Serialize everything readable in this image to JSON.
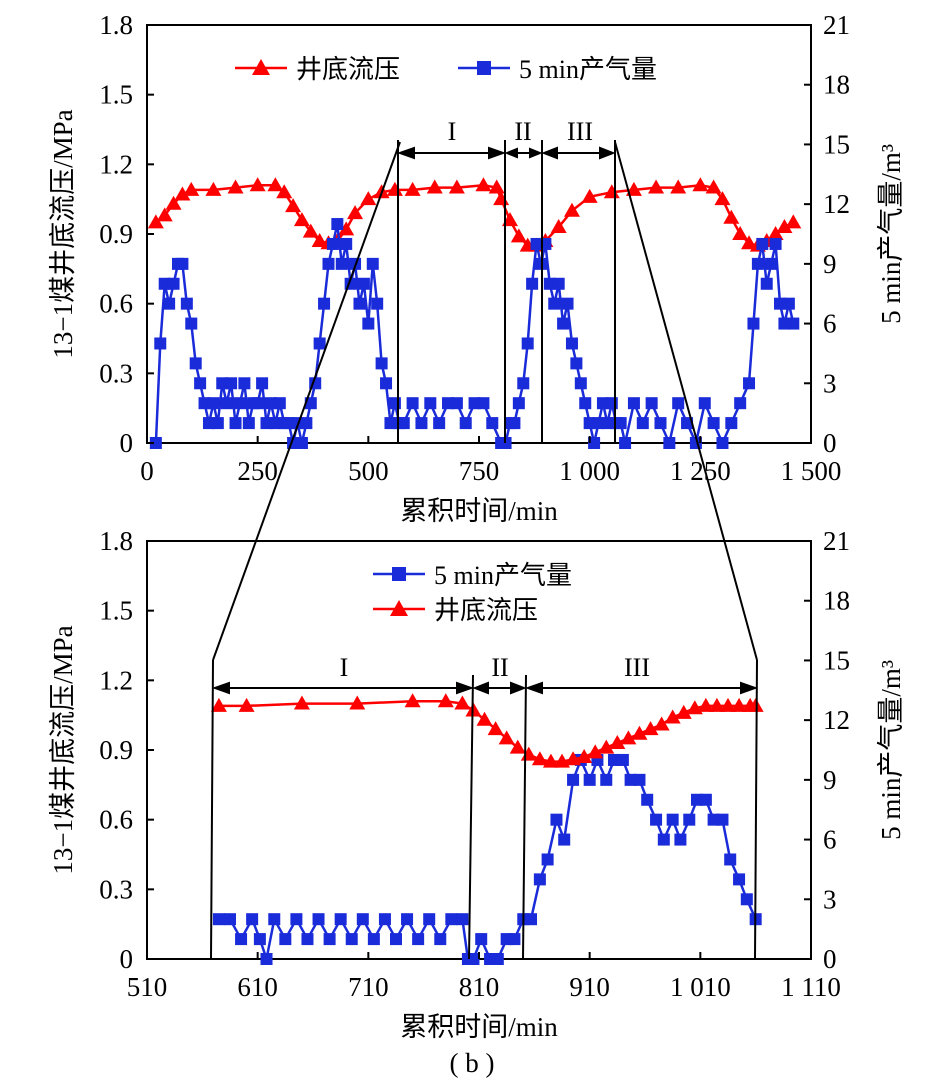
{
  "caption": "( b )",
  "colors": {
    "pressure": "#ff0000",
    "gas": "#1a2bd9",
    "axis": "#000000"
  },
  "chart_data": [
    {
      "type": "line",
      "x": {
        "label": "累积时间/min",
        "ticks": [
          "0",
          "250",
          "500",
          "750",
          "1 000",
          "1 250",
          "1 500"
        ],
        "range": [
          0,
          1500
        ]
      },
      "y_left": {
        "label": "13−1煤井底流压/MPa",
        "ticks": [
          "0",
          "0.3",
          "0.6",
          "0.9",
          "1.2",
          "1.5",
          "1.8"
        ],
        "range": [
          0,
          1.8
        ]
      },
      "y_right": {
        "label": "5 min产气量/m³",
        "ticks": [
          "0",
          "3",
          "6",
          "9",
          "12",
          "15",
          "18",
          "21"
        ],
        "range": [
          0,
          21
        ]
      },
      "legend": [
        "井底流压",
        "5 min产气量"
      ],
      "phase_labels": [
        "I",
        "II",
        "III"
      ],
      "series": [
        {
          "name": "井底流压",
          "axis": "left",
          "marker": "triangle",
          "x": [
            20,
            40,
            60,
            80,
            100,
            150,
            200,
            250,
            290,
            310,
            330,
            350,
            370,
            390,
            410,
            430,
            450,
            470,
            500,
            530,
            560,
            600,
            650,
            700,
            760,
            790,
            800,
            820,
            840,
            860,
            880,
            900,
            930,
            960,
            1000,
            1050,
            1100,
            1150,
            1200,
            1250,
            1280,
            1300,
            1320,
            1340,
            1360,
            1380,
            1400,
            1420,
            1440,
            1460
          ],
          "y": [
            0.95,
            0.98,
            1.03,
            1.07,
            1.09,
            1.09,
            1.1,
            1.11,
            1.11,
            1.08,
            1.02,
            0.96,
            0.91,
            0.87,
            0.86,
            0.87,
            0.92,
            0.99,
            1.05,
            1.08,
            1.09,
            1.09,
            1.1,
            1.1,
            1.11,
            1.1,
            1.05,
            0.96,
            0.89,
            0.85,
            0.85,
            0.87,
            0.93,
            1.0,
            1.06,
            1.08,
            1.09,
            1.1,
            1.1,
            1.11,
            1.1,
            1.05,
            0.97,
            0.9,
            0.86,
            0.85,
            0.87,
            0.9,
            0.93,
            0.95
          ]
        },
        {
          "name": "5 min产气量",
          "axis": "right",
          "marker": "square",
          "x": [
            20,
            30,
            40,
            50,
            60,
            70,
            80,
            90,
            100,
            110,
            120,
            130,
            140,
            150,
            160,
            170,
            180,
            190,
            200,
            210,
            220,
            230,
            240,
            250,
            260,
            270,
            280,
            290,
            300,
            310,
            320,
            330,
            340,
            350,
            360,
            370,
            380,
            390,
            400,
            410,
            420,
            430,
            440,
            450,
            460,
            470,
            480,
            490,
            500,
            510,
            520,
            530,
            540,
            550,
            560,
            570,
            580,
            600,
            620,
            640,
            660,
            680,
            700,
            720,
            740,
            760,
            780,
            800,
            810,
            820,
            830,
            840,
            850,
            860,
            870,
            880,
            890,
            900,
            910,
            920,
            930,
            940,
            950,
            960,
            970,
            980,
            990,
            1000,
            1010,
            1020,
            1030,
            1040,
            1050,
            1060,
            1070,
            1080,
            1100,
            1120,
            1140,
            1160,
            1180,
            1200,
            1220,
            1240,
            1260,
            1280,
            1300,
            1320,
            1340,
            1360,
            1370,
            1380,
            1390,
            1400,
            1410,
            1420,
            1430,
            1440,
            1450,
            1460
          ],
          "y": [
            0,
            5,
            8,
            7,
            8,
            9,
            9,
            7,
            6,
            4,
            3,
            2,
            1,
            2,
            1,
            3,
            2,
            3,
            1,
            2,
            3,
            1,
            2,
            2,
            3,
            1,
            2,
            1,
            2,
            1,
            1,
            0,
            1,
            0,
            1,
            2,
            3,
            5,
            7,
            9,
            10,
            11,
            9,
            10,
            8,
            9,
            7,
            8,
            6,
            9,
            7,
            4,
            3,
            1,
            2,
            1,
            1,
            2,
            1,
            2,
            1,
            2,
            2,
            1,
            2,
            2,
            1,
            0,
            0,
            1,
            1,
            2,
            3,
            5,
            8,
            10,
            9,
            10,
            8,
            7,
            8,
            6,
            7,
            5,
            4,
            3,
            2,
            1,
            0,
            1,
            2,
            1,
            2,
            1,
            1,
            0,
            2,
            1,
            2,
            1,
            0,
            2,
            1,
            0,
            2,
            1,
            0,
            1,
            2,
            3,
            6,
            9,
            10,
            8,
            9,
            10,
            7,
            6,
            7,
            6
          ]
        }
      ]
    },
    {
      "type": "line",
      "x": {
        "label": "累积时间/min",
        "ticks": [
          "510",
          "610",
          "710",
          "810",
          "910",
          "1 010",
          "1 110"
        ],
        "range": [
          510,
          1110
        ]
      },
      "y_left": {
        "label": "13−1煤井底流压/MPa",
        "ticks": [
          "0",
          "0.3",
          "0.6",
          "0.9",
          "1.2",
          "1.5",
          "1.8"
        ],
        "range": [
          0,
          1.8
        ]
      },
      "y_right": {
        "label": "5 min产气量/m³",
        "ticks": [
          "0",
          "3",
          "6",
          "9",
          "12",
          "15",
          "18",
          "21"
        ],
        "range": [
          0,
          21
        ]
      },
      "legend": [
        "5 min产气量",
        "井底流压"
      ],
      "phase_labels": [
        "I",
        "II",
        "III"
      ],
      "series": [
        {
          "name": "5 min产气量",
          "axis": "right",
          "marker": "square",
          "x": [
            575,
            585,
            595,
            605,
            612,
            618,
            625,
            635,
            645,
            655,
            665,
            675,
            685,
            695,
            705,
            715,
            725,
            735,
            745,
            755,
            765,
            775,
            785,
            795,
            800,
            805,
            812,
            820,
            827,
            835,
            842,
            850,
            857,
            865,
            872,
            880,
            887,
            895,
            902,
            910,
            917,
            925,
            932,
            940,
            947,
            955,
            962,
            970,
            977,
            985,
            992,
            1000,
            1007,
            1015,
            1022,
            1030,
            1037,
            1045,
            1052,
            1060
          ],
          "y": [
            2,
            2,
            1,
            2,
            1,
            0,
            2,
            1,
            2,
            1,
            2,
            1,
            2,
            1,
            2,
            1,
            2,
            1,
            2,
            1,
            2,
            1,
            2,
            2,
            0,
            0,
            1,
            0,
            0,
            1,
            1,
            2,
            2,
            4,
            5,
            7,
            6,
            9,
            10,
            9,
            10,
            9,
            10,
            10,
            9,
            9,
            8,
            7,
            6,
            7,
            6,
            7,
            8,
            8,
            7,
            7,
            5,
            4,
            3,
            2
          ]
        },
        {
          "name": "井底流压",
          "axis": "left",
          "marker": "triangle",
          "x": [
            575,
            600,
            650,
            700,
            750,
            780,
            795,
            805,
            815,
            825,
            835,
            845,
            855,
            865,
            875,
            885,
            895,
            905,
            915,
            925,
            935,
            945,
            955,
            965,
            975,
            985,
            995,
            1005,
            1015,
            1025,
            1035,
            1045,
            1055,
            1060
          ],
          "y": [
            1.09,
            1.09,
            1.1,
            1.1,
            1.11,
            1.11,
            1.1,
            1.07,
            1.03,
            0.99,
            0.95,
            0.91,
            0.88,
            0.86,
            0.85,
            0.85,
            0.86,
            0.87,
            0.89,
            0.91,
            0.93,
            0.95,
            0.97,
            0.99,
            1.01,
            1.04,
            1.06,
            1.08,
            1.09,
            1.09,
            1.09,
            1.09,
            1.09,
            1.09
          ]
        }
      ]
    }
  ]
}
